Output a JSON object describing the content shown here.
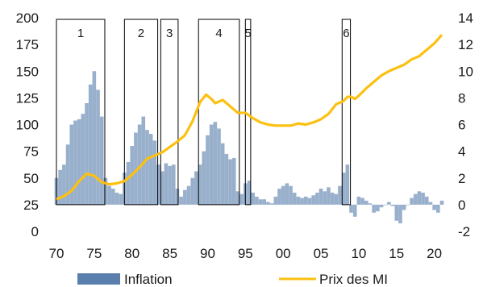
{
  "chart_data": {
    "type": "bar",
    "x_range": [
      70,
      121
    ],
    "x_ticks": [
      "70",
      "75",
      "80",
      "85",
      "90",
      "95",
      "00",
      "05",
      "10",
      "15",
      "20"
    ],
    "y_left": {
      "ticks": [
        "0",
        "25",
        "50",
        "75",
        "100",
        "125",
        "150",
        "175",
        "200"
      ],
      "range": [
        0,
        200
      ]
    },
    "y_right": {
      "ticks": [
        "-2",
        "0",
        "2",
        "4",
        "6",
        "8",
        "10",
        "12",
        "14"
      ],
      "range": [
        -2,
        14
      ]
    },
    "grid": false,
    "legend_position": "bottom",
    "series": [
      {
        "name": "Inflation",
        "type": "bar",
        "axis": "right",
        "color": "#5b7fad",
        "points": [
          [
            70.0,
            2.0
          ],
          [
            70.5,
            2.6
          ],
          [
            71.0,
            3.0
          ],
          [
            71.5,
            4.5
          ],
          [
            72.0,
            6.0
          ],
          [
            72.5,
            6.3
          ],
          [
            73.0,
            6.4
          ],
          [
            73.5,
            6.8
          ],
          [
            74.0,
            7.6
          ],
          [
            74.5,
            9.0
          ],
          [
            75.0,
            10.0
          ],
          [
            75.5,
            8.6
          ],
          [
            76.0,
            6.6
          ],
          [
            76.5,
            2.0
          ],
          [
            77.0,
            1.4
          ],
          [
            77.5,
            1.2
          ],
          [
            78.0,
            0.9
          ],
          [
            78.5,
            0.8
          ],
          [
            79.0,
            2.4
          ],
          [
            79.5,
            3.2
          ],
          [
            80.0,
            4.4
          ],
          [
            80.5,
            5.4
          ],
          [
            81.0,
            6.0
          ],
          [
            81.5,
            6.6
          ],
          [
            82.0,
            5.6
          ],
          [
            82.5,
            5.3
          ],
          [
            83.0,
            4.8
          ],
          [
            83.5,
            3.0
          ],
          [
            84.0,
            2.5
          ],
          [
            84.5,
            3.1
          ],
          [
            85.0,
            2.9
          ],
          [
            85.5,
            3.0
          ],
          [
            86.0,
            1.2
          ],
          [
            86.5,
            0.6
          ],
          [
            87.0,
            1.1
          ],
          [
            87.5,
            1.4
          ],
          [
            88.0,
            2.0
          ],
          [
            88.5,
            2.5
          ],
          [
            89.0,
            3.0
          ],
          [
            89.5,
            4.0
          ],
          [
            90.0,
            5.2
          ],
          [
            90.5,
            6.0
          ],
          [
            91.0,
            6.2
          ],
          [
            91.5,
            5.7
          ],
          [
            92.0,
            4.6
          ],
          [
            92.5,
            3.8
          ],
          [
            93.0,
            3.4
          ],
          [
            93.5,
            3.5
          ],
          [
            94.0,
            1.0
          ],
          [
            94.5,
            0.8
          ],
          [
            95.0,
            1.6
          ],
          [
            95.5,
            1.8
          ],
          [
            96.0,
            0.9
          ],
          [
            96.5,
            0.6
          ],
          [
            97.0,
            0.4
          ],
          [
            97.5,
            0.4
          ],
          [
            98.0,
            0.2
          ],
          [
            98.5,
            0.1
          ],
          [
            99.0,
            0.6
          ],
          [
            99.5,
            1.2
          ],
          [
            100.0,
            1.4
          ],
          [
            100.5,
            1.6
          ],
          [
            101.0,
            1.4
          ],
          [
            101.5,
            0.9
          ],
          [
            102.0,
            0.6
          ],
          [
            102.5,
            0.5
          ],
          [
            103.0,
            0.6
          ],
          [
            103.5,
            0.5
          ],
          [
            104.0,
            0.7
          ],
          [
            104.5,
            0.9
          ],
          [
            105.0,
            1.2
          ],
          [
            105.5,
            1.0
          ],
          [
            106.0,
            1.3
          ],
          [
            106.5,
            0.9
          ],
          [
            107.0,
            0.8
          ],
          [
            107.5,
            1.4
          ],
          [
            108.0,
            2.4
          ],
          [
            108.5,
            3.0
          ],
          [
            109.0,
            -0.6
          ],
          [
            109.5,
            -0.9
          ],
          [
            110.0,
            0.6
          ],
          [
            110.5,
            0.5
          ],
          [
            111.0,
            0.3
          ],
          [
            111.5,
            0.1
          ],
          [
            112.0,
            -0.6
          ],
          [
            112.5,
            -0.5
          ],
          [
            113.0,
            -0.2
          ],
          [
            113.5,
            0.0
          ],
          [
            114.0,
            0.2
          ],
          [
            114.5,
            -0.1
          ],
          [
            115.0,
            -1.2
          ],
          [
            115.5,
            -1.4
          ],
          [
            116.0,
            -0.4
          ],
          [
            116.5,
            0.0
          ],
          [
            117.0,
            0.5
          ],
          [
            117.5,
            0.8
          ],
          [
            118.0,
            1.0
          ],
          [
            118.5,
            0.9
          ],
          [
            119.0,
            0.6
          ],
          [
            119.5,
            0.2
          ],
          [
            120.0,
            -0.4
          ],
          [
            120.5,
            -0.6
          ],
          [
            121.0,
            0.3
          ]
        ]
      },
      {
        "name": "Prix des MI",
        "type": "line",
        "axis": "left",
        "color": "#fcc010",
        "points": [
          [
            70.0,
            30
          ],
          [
            71.0,
            33
          ],
          [
            72.0,
            38
          ],
          [
            73.0,
            47
          ],
          [
            74.0,
            54
          ],
          [
            75.0,
            52
          ],
          [
            76.0,
            46
          ],
          [
            77.0,
            44
          ],
          [
            78.0,
            45
          ],
          [
            79.0,
            47
          ],
          [
            80.0,
            53
          ],
          [
            81.0,
            60
          ],
          [
            82.0,
            68
          ],
          [
            83.0,
            71
          ],
          [
            84.0,
            74
          ],
          [
            85.0,
            79
          ],
          [
            86.0,
            84
          ],
          [
            87.0,
            90
          ],
          [
            88.0,
            103
          ],
          [
            89.0,
            121
          ],
          [
            89.8,
            128
          ],
          [
            90.5,
            124
          ],
          [
            91.0,
            120
          ],
          [
            92.0,
            123
          ],
          [
            93.0,
            117
          ],
          [
            94.0,
            111
          ],
          [
            95.0,
            111
          ],
          [
            96.0,
            106
          ],
          [
            97.0,
            102
          ],
          [
            98.0,
            100
          ],
          [
            99.0,
            99
          ],
          [
            100.0,
            99
          ],
          [
            101.0,
            99
          ],
          [
            102.0,
            101
          ],
          [
            103.0,
            100
          ],
          [
            104.0,
            102
          ],
          [
            105.0,
            105
          ],
          [
            106.0,
            110
          ],
          [
            107.0,
            119
          ],
          [
            108.0,
            122
          ],
          [
            108.5,
            126
          ],
          [
            109.0,
            126
          ],
          [
            109.5,
            124
          ],
          [
            110.0,
            127
          ],
          [
            111.0,
            134
          ],
          [
            112.0,
            140
          ],
          [
            113.0,
            146
          ],
          [
            114.0,
            150
          ],
          [
            115.0,
            153
          ],
          [
            116.0,
            156
          ],
          [
            117.0,
            161
          ],
          [
            118.0,
            164
          ],
          [
            119.0,
            170
          ],
          [
            120.0,
            176
          ],
          [
            121.0,
            184
          ]
        ]
      }
    ],
    "episodes": [
      {
        "label": "1",
        "x0": 70.0,
        "x1": 76.4
      },
      {
        "label": "2",
        "x0": 79.0,
        "x1": 83.4
      },
      {
        "label": "3",
        "x0": 83.8,
        "x1": 86.1
      },
      {
        "label": "4",
        "x0": 88.8,
        "x1": 94.2
      },
      {
        "label": "5",
        "x0": 95.0,
        "x1": 95.7
      },
      {
        "label": "6",
        "x0": 107.8,
        "x1": 108.9
      }
    ]
  }
}
